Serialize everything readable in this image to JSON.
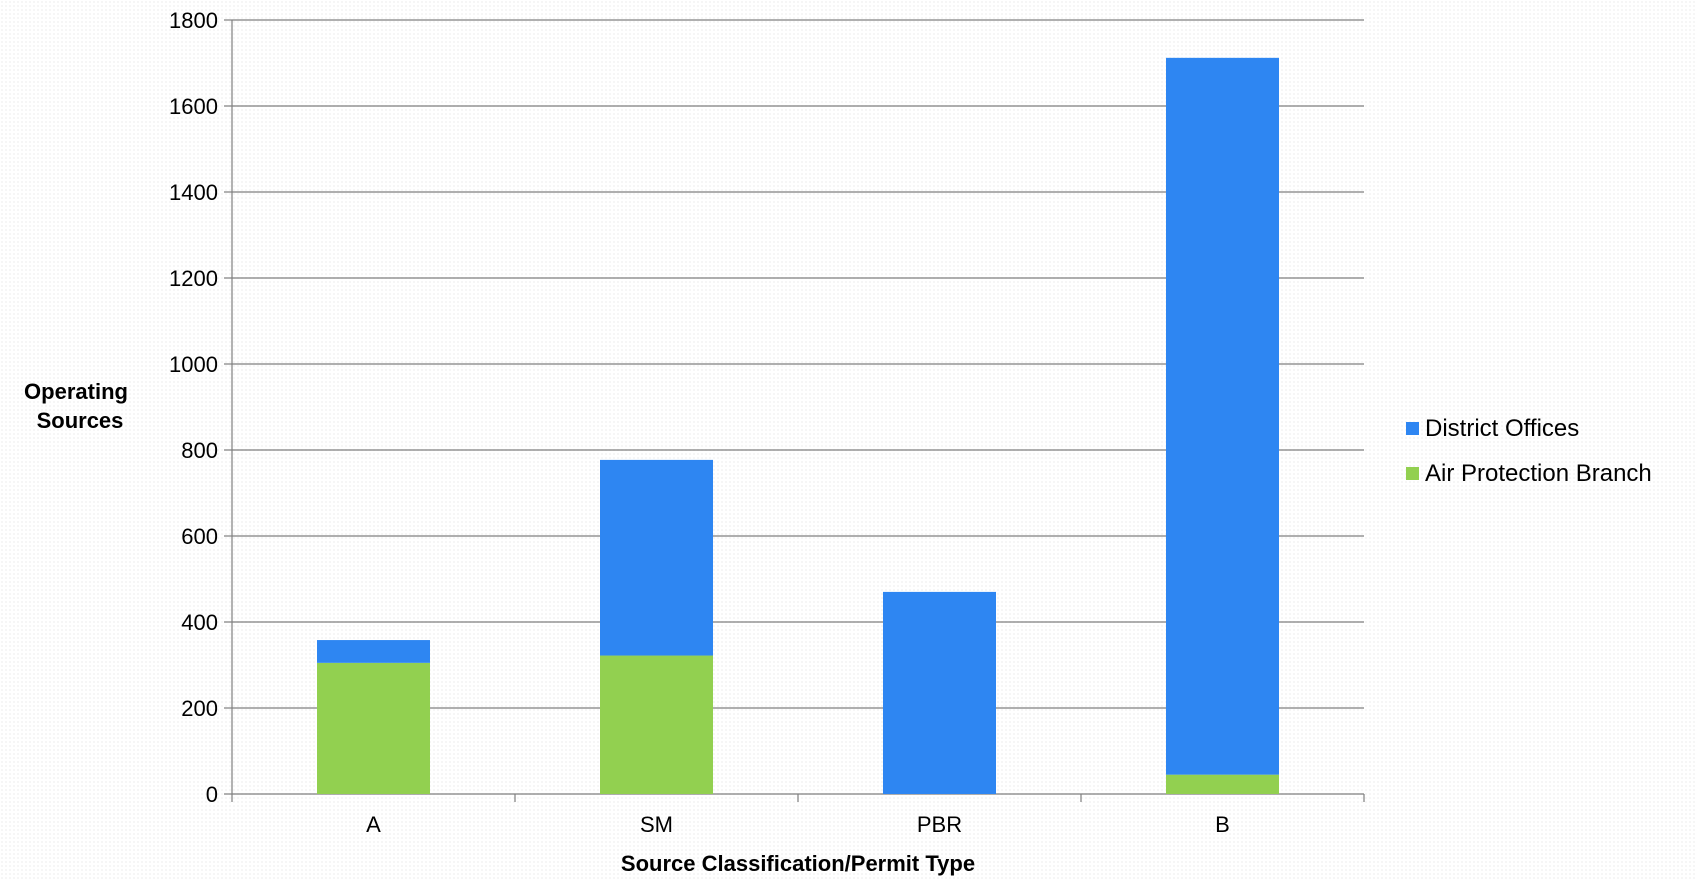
{
  "chart_data": {
    "type": "bar",
    "stacked": true,
    "title": "",
    "xlabel": "Source Classification/Permit Type",
    "ylabel_lines": [
      "Operating",
      "Sources"
    ],
    "categories": [
      "A",
      "SM",
      "PBR",
      "B"
    ],
    "ylim": [
      0,
      1800
    ],
    "yticks": [
      0,
      200,
      400,
      600,
      800,
      1000,
      1200,
      1400,
      1600,
      1800
    ],
    "grid": true,
    "legend_position": "right",
    "series": [
      {
        "name": "Air Protection Branch",
        "color": "#92d050",
        "values": [
          305,
          322,
          0,
          45
        ]
      },
      {
        "name": "District Offices",
        "color": "#2e86f2",
        "values": [
          53,
          455,
          470,
          1667
        ]
      }
    ],
    "legend_order": [
      "District Offices",
      "Air Protection Branch"
    ]
  }
}
